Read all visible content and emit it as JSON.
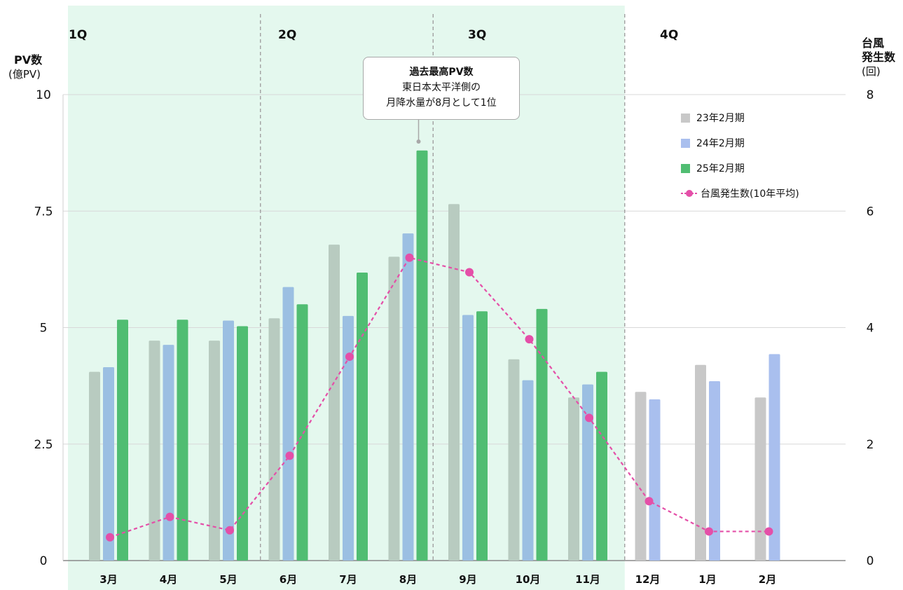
{
  "chart_data": {
    "type": "bar",
    "categories": [
      "3月",
      "4月",
      "5月",
      "6月",
      "7月",
      "8月",
      "9月",
      "10月",
      "11月",
      "12月",
      "1月",
      "2月"
    ],
    "series": [
      {
        "name": "23年2月期",
        "kind": "bar",
        "axis": "left",
        "values": [
          4.05,
          4.72,
          4.72,
          5.2,
          6.78,
          6.52,
          7.65,
          4.32,
          3.5,
          3.62,
          4.2,
          3.5
        ]
      },
      {
        "name": "24年2月期",
        "kind": "bar",
        "axis": "left",
        "values": [
          4.15,
          4.63,
          5.15,
          5.87,
          5.25,
          7.02,
          5.27,
          3.87,
          3.78,
          3.46,
          3.85,
          4.43
        ]
      },
      {
        "name": "25年2月期",
        "kind": "bar",
        "axis": "left",
        "values": [
          5.17,
          5.17,
          5.03,
          5.5,
          6.18,
          8.8,
          5.35,
          5.4,
          4.05,
          null,
          null,
          null
        ]
      },
      {
        "name": "台風発生数(10年平均)",
        "kind": "line",
        "axis": "right",
        "values": [
          0.4,
          0.75,
          0.52,
          1.8,
          3.5,
          5.2,
          4.95,
          3.8,
          2.45,
          1.02,
          0.5,
          0.5
        ]
      }
    ],
    "ylabel_left": "PV数",
    "ylabel_left_unit": "(億PV)",
    "ylabel_right_line1": "台風",
    "ylabel_right_line2": "発生数",
    "ylabel_right_unit": "(回)",
    "ylim_left": [
      0,
      10
    ],
    "ylim_right": [
      0,
      8
    ],
    "yticks_left": [
      "0",
      "2.5",
      "5",
      "7.5",
      "10"
    ],
    "yticks_right": [
      "0",
      "2",
      "4",
      "6",
      "8"
    ],
    "quarters": [
      "1Q",
      "2Q",
      "3Q",
      "4Q"
    ],
    "annotation": {
      "category": "8月",
      "lines": [
        "過去最高PV数",
        "東日本太平洋側の",
        "月降水量が8月として1位"
      ]
    },
    "legend_position": "top-right",
    "grid": true,
    "colors": {
      "bar_23_highlight": "#b8cbc0",
      "bar_23": "#c8c8c8",
      "bar_24_highlight": "#9bbfe2",
      "bar_24": "#a9bfee",
      "bar_25": "#50bd72",
      "line": "#e44fa8",
      "quarter_band": "#e4f8ee",
      "gridline": "#d8d8d8"
    }
  }
}
